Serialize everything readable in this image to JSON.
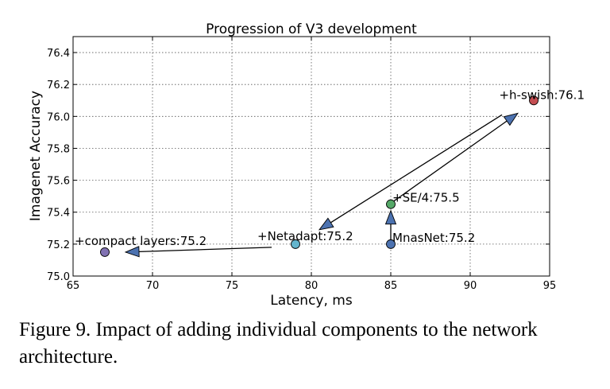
{
  "chart_data": {
    "type": "scatter",
    "title": "Progression of V3 development",
    "xlabel": "Latency, ms",
    "ylabel": "Imagenet Accuracy",
    "xlim": [
      65,
      95
    ],
    "ylim": [
      75.0,
      76.5
    ],
    "x_ticks": [
      65,
      70,
      75,
      80,
      85,
      90,
      95
    ],
    "y_ticks": [
      75.0,
      75.2,
      75.4,
      75.6,
      75.8,
      76.0,
      76.2,
      76.4
    ],
    "x_tick_labels": [
      "65",
      "70",
      "75",
      "80",
      "85",
      "90",
      "95"
    ],
    "y_tick_labels": [
      "75.0",
      "75.2",
      "75.4",
      "75.6",
      "75.8",
      "76.0",
      "76.2",
      "76.4"
    ],
    "grid": true,
    "points": [
      {
        "label": "MnasNet:75.2",
        "x": 85.0,
        "y": 75.2,
        "color": "#4c72b0"
      },
      {
        "label": "+SE/4:75.5",
        "x": 85.0,
        "y": 75.45,
        "color": "#55a868"
      },
      {
        "label": "+h-swish:76.1",
        "x": 94.0,
        "y": 76.1,
        "color": "#c44e52"
      },
      {
        "label": "+Netadapt:75.2",
        "x": 79.0,
        "y": 75.2,
        "color": "#64b5cd"
      },
      {
        "label": "+compact layers:75.2",
        "x": 67.0,
        "y": 75.15,
        "color": "#8172b2"
      }
    ],
    "arrows": [
      {
        "from": [
          85.0,
          75.22
        ],
        "to": [
          85.0,
          75.41
        ]
      },
      {
        "from": [
          85.2,
          75.47
        ],
        "to": [
          93.0,
          76.02
        ]
      },
      {
        "from": [
          92.0,
          76.01
        ],
        "to": [
          80.5,
          75.29
        ]
      },
      {
        "from": [
          77.5,
          75.18
        ],
        "to": [
          68.3,
          75.15
        ]
      }
    ]
  },
  "caption": "Figure 9. Impact of adding individual components to the network architecture."
}
